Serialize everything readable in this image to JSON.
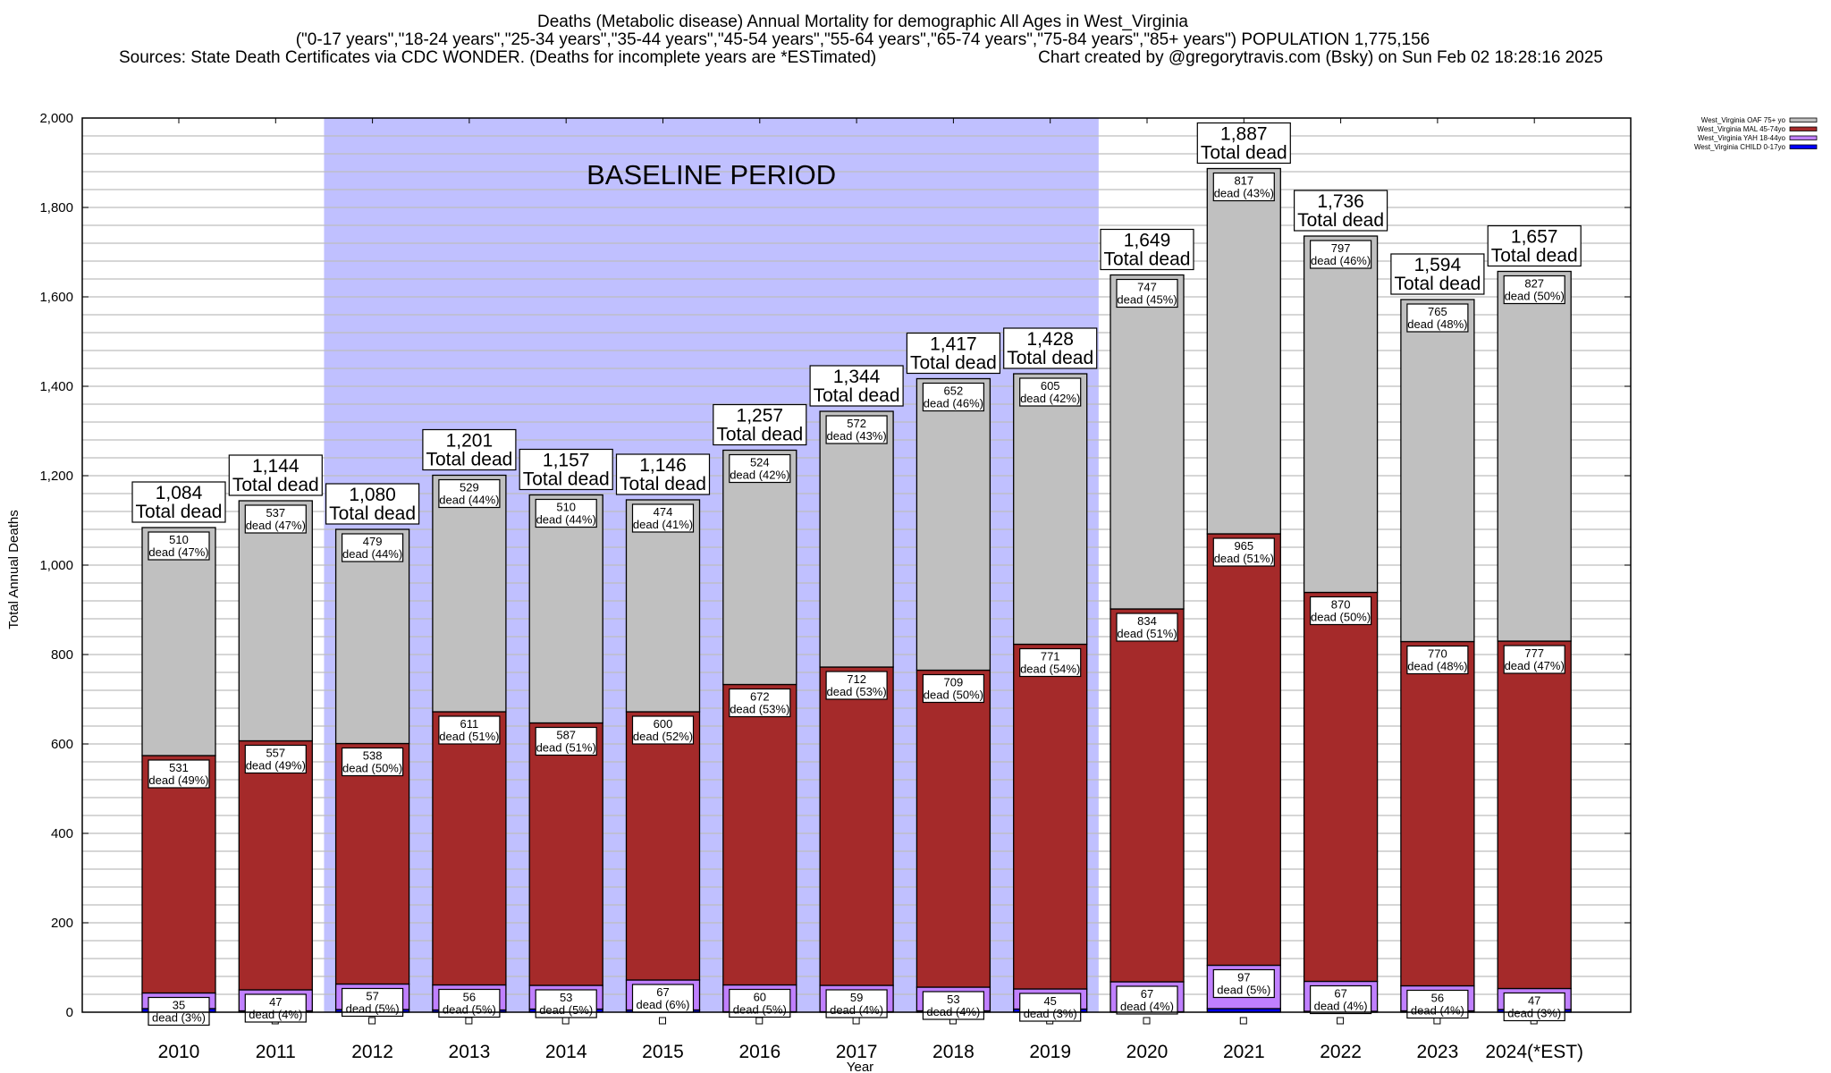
{
  "header": {
    "title": "Deaths (Metabolic disease) Annual Mortality for demographic All Ages in West_Virginia",
    "subtitle": "(\"0-17 years\",\"18-24 years\",\"25-34 years\",\"35-44 years\",\"45-54 years\",\"55-64 years\",\"65-74 years\",\"75-84 years\",\"85+ years\") POPULATION 1,775,156",
    "sources": "Sources: State Death Certificates via CDC WONDER. (Deaths for incomplete years are *ESTimated)",
    "credit": "Chart created by @gregorytravis.com (Bsky) on Sun Feb 02 18:28:16 2025"
  },
  "chart_data": {
    "type": "bar",
    "stacked": true,
    "xlabel": "Year",
    "ylabel": "Total Annual Deaths",
    "ylim": [
      0,
      2000
    ],
    "ytick_step": 200,
    "grid": true,
    "legend_position": "top-right",
    "annotation": "BASELINE PERIOD",
    "baseline_period": [
      "2012",
      "2019"
    ],
    "categories": [
      "2010",
      "2011",
      "2012",
      "2013",
      "2014",
      "2015",
      "2016",
      "2017",
      "2018",
      "2019",
      "2020",
      "2021",
      "2022",
      "2023",
      "2024(*EST)"
    ],
    "totals": [
      1084,
      1144,
      1080,
      1201,
      1157,
      1146,
      1257,
      1344,
      1417,
      1428,
      1649,
      1887,
      1736,
      1594,
      1657
    ],
    "total_label": "Total dead",
    "segment_label": "dead",
    "series": [
      {
        "name": "West_Virginia CHILD 0-17yo",
        "color": "#0000ff",
        "values": [
          8,
          3,
          6,
          5,
          7,
          5,
          1,
          1,
          3,
          7,
          1,
          8,
          2,
          3,
          6
        ]
      },
      {
        "name": "West_Virginia YAH 18-44yo",
        "color": "#c080ff",
        "values": [
          35,
          47,
          57,
          56,
          53,
          67,
          60,
          59,
          53,
          45,
          67,
          97,
          67,
          56,
          47
        ],
        "pct": [
          3,
          4,
          5,
          5,
          5,
          6,
          5,
          4,
          4,
          3,
          4,
          5,
          4,
          4,
          3
        ]
      },
      {
        "name": "West_Virginia MAL 45-74yo",
        "color": "#a52a2a",
        "values": [
          531,
          557,
          538,
          611,
          587,
          600,
          672,
          712,
          709,
          771,
          834,
          965,
          870,
          770,
          777
        ],
        "pct": [
          49,
          49,
          50,
          51,
          51,
          52,
          53,
          53,
          50,
          54,
          51,
          51,
          50,
          48,
          47
        ]
      },
      {
        "name": "West_Virginia OAF 75+ yo",
        "color": "#c0c0c0",
        "values": [
          510,
          537,
          479,
          529,
          510,
          474,
          524,
          572,
          652,
          605,
          747,
          817,
          797,
          765,
          827
        ],
        "pct": [
          47,
          47,
          44,
          44,
          44,
          41,
          42,
          43,
          46,
          42,
          45,
          43,
          46,
          48,
          50
        ]
      }
    ],
    "shade_color": "#c0c0ff"
  }
}
